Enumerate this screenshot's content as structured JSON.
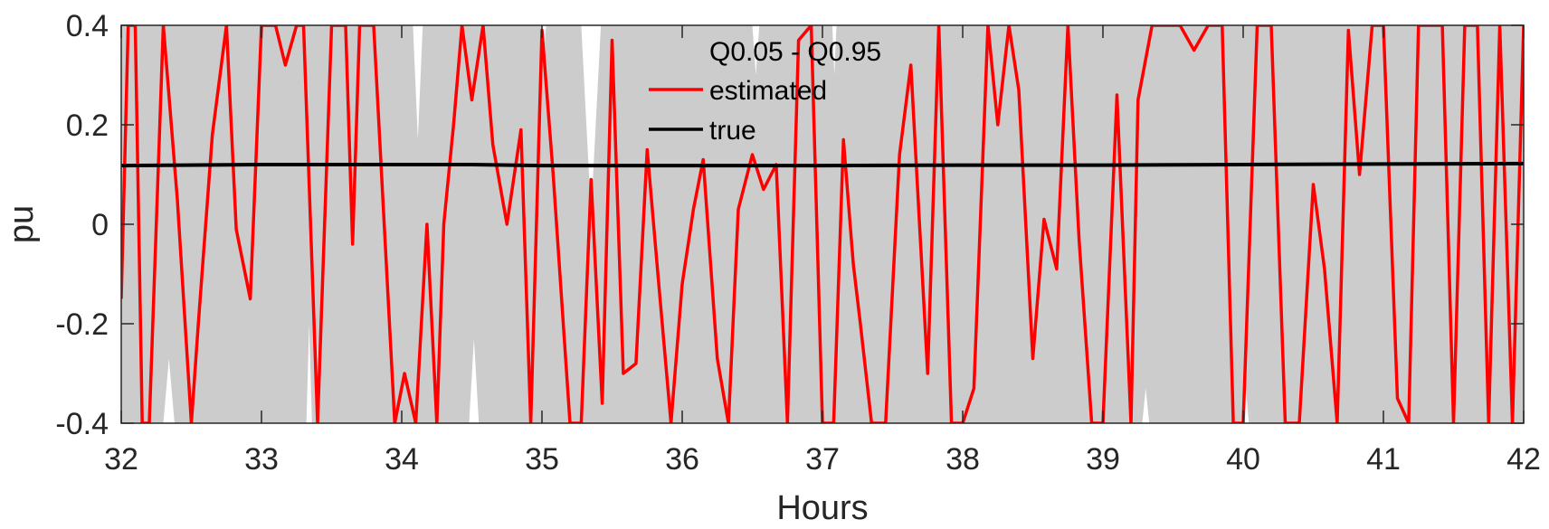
{
  "chart_data": {
    "type": "line",
    "xlabel": "Hours",
    "ylabel": "pu",
    "xlim": [
      32,
      42
    ],
    "ylim": [
      -0.4,
      0.4
    ],
    "xticks": [
      "32",
      "33",
      "34",
      "35",
      "36",
      "37",
      "38",
      "39",
      "40",
      "41",
      "42"
    ],
    "yticks": [
      "-0.4",
      "-0.2",
      "0",
      "0.2",
      "0.4"
    ],
    "grid": false,
    "legend_position": "top-center",
    "colors": {
      "band": "#cccccc",
      "estimated": "#ff0000",
      "true": "#000000"
    },
    "band": {
      "name": "Q0.05 - Q0.95",
      "gaps": [
        {
          "from": 32.3,
          "to": 32.38,
          "side": "bottom",
          "depth": -0.27
        },
        {
          "from": 33.32,
          "to": 33.36,
          "side": "bottom",
          "depth": -0.2
        },
        {
          "from": 34.08,
          "to": 34.15,
          "side": "top",
          "depth": 0.17
        },
        {
          "from": 34.48,
          "to": 34.55,
          "side": "bottom",
          "depth": -0.23
        },
        {
          "from": 35.0,
          "to": 35.03,
          "side": "top",
          "depth": 0.35
        },
        {
          "from": 35.28,
          "to": 35.42,
          "side": "top",
          "depth": 0.02
        },
        {
          "from": 36.5,
          "to": 36.55,
          "side": "top",
          "depth": 0.3
        },
        {
          "from": 37.07,
          "to": 37.1,
          "side": "top",
          "depth": 0.3
        },
        {
          "from": 39.28,
          "to": 39.33,
          "side": "bottom",
          "depth": -0.33
        },
        {
          "from": 40.0,
          "to": 40.04,
          "side": "bottom",
          "depth": -0.33
        }
      ]
    },
    "series": [
      {
        "name": "estimated",
        "x": [
          32.0,
          32.05,
          32.1,
          32.15,
          32.2,
          32.3,
          32.4,
          32.5,
          32.55,
          32.65,
          32.75,
          32.82,
          32.92,
          33.0,
          33.1,
          33.17,
          33.25,
          33.3,
          33.4,
          33.5,
          33.6,
          33.65,
          33.7,
          33.8,
          33.95,
          34.02,
          34.1,
          34.18,
          34.25,
          34.3,
          34.37,
          34.43,
          34.5,
          34.58,
          34.65,
          34.75,
          34.85,
          34.92,
          35.0,
          35.08,
          35.2,
          35.28,
          35.35,
          35.43,
          35.5,
          35.58,
          35.67,
          35.75,
          35.83,
          35.92,
          36.0,
          36.08,
          36.15,
          36.25,
          36.33,
          36.4,
          36.5,
          36.58,
          36.67,
          36.75,
          36.83,
          36.92,
          37.0,
          37.08,
          37.15,
          37.22,
          37.27,
          37.35,
          37.45,
          37.55,
          37.63,
          37.75,
          37.83,
          37.92,
          38.0,
          38.08,
          38.18,
          38.25,
          38.33,
          38.4,
          38.5,
          38.58,
          38.67,
          38.75,
          38.83,
          38.92,
          39.0,
          39.1,
          39.2,
          39.25,
          39.35,
          39.45,
          39.55,
          39.65,
          39.75,
          39.85,
          39.93,
          40.0,
          40.1,
          40.2,
          40.3,
          40.4,
          40.5,
          40.58,
          40.67,
          40.75,
          40.83,
          40.92,
          41.0,
          41.1,
          41.18,
          41.25,
          41.33,
          41.42,
          41.5,
          41.58,
          41.67,
          41.75,
          41.83,
          41.92,
          42.0
        ],
        "y": [
          -0.15,
          0.4,
          0.4,
          -0.4,
          -0.4,
          0.4,
          0.05,
          -0.4,
          -0.2,
          0.18,
          0.4,
          -0.01,
          -0.15,
          0.4,
          0.4,
          0.32,
          0.4,
          0.4,
          -0.4,
          0.4,
          0.4,
          -0.04,
          0.4,
          0.4,
          -0.4,
          -0.3,
          -0.4,
          0.0,
          -0.4,
          0.0,
          0.2,
          0.4,
          0.25,
          0.4,
          0.16,
          0.0,
          0.19,
          -0.4,
          0.39,
          0.1,
          -0.4,
          -0.4,
          0.09,
          -0.36,
          0.37,
          -0.3,
          -0.28,
          0.15,
          -0.11,
          -0.4,
          -0.12,
          0.03,
          0.13,
          -0.27,
          -0.4,
          0.03,
          0.14,
          0.07,
          0.12,
          -0.4,
          0.37,
          0.4,
          -0.4,
          -0.4,
          0.17,
          -0.08,
          -0.2,
          -0.4,
          -0.4,
          0.14,
          0.32,
          -0.3,
          0.4,
          -0.4,
          -0.4,
          -0.33,
          0.4,
          0.2,
          0.4,
          0.27,
          -0.27,
          0.01,
          -0.09,
          0.4,
          -0.03,
          -0.4,
          -0.4,
          0.26,
          -0.4,
          0.25,
          0.4,
          0.4,
          0.4,
          0.35,
          0.4,
          0.4,
          -0.4,
          -0.4,
          0.4,
          0.4,
          -0.4,
          -0.4,
          0.08,
          -0.09,
          -0.4,
          0.39,
          0.1,
          0.4,
          0.4,
          -0.35,
          -0.4,
          0.4,
          0.4,
          0.4,
          -0.4,
          0.4,
          0.4,
          -0.4,
          0.4,
          -0.4,
          0.4
        ]
      },
      {
        "name": "true",
        "x": [
          32.0,
          33.0,
          34.0,
          34.5,
          35.0,
          36.0,
          37.0,
          38.0,
          39.0,
          40.0,
          41.0,
          42.0
        ],
        "y": [
          0.118,
          0.12,
          0.12,
          0.12,
          0.118,
          0.118,
          0.118,
          0.119,
          0.119,
          0.12,
          0.121,
          0.122
        ]
      }
    ]
  }
}
